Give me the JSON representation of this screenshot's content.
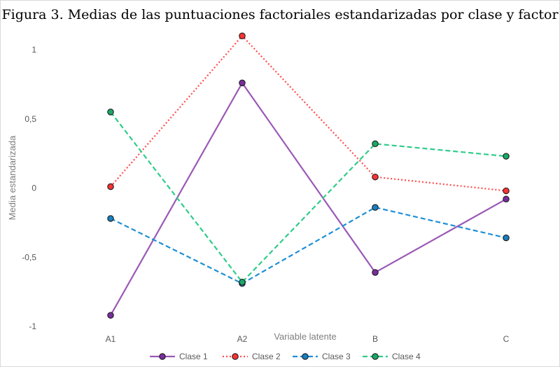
{
  "chart_data": {
    "type": "line",
    "title": "Figura 3. Medias de las puntuaciones factoriales estandarizadas por clase y factor",
    "xlabel": "Variable latente",
    "ylabel": "Media estandarizada",
    "categories": [
      "A1",
      "A2",
      "B",
      "C"
    ],
    "ylim": [
      -1,
      1.1
    ],
    "yticks": [
      {
        "value": 1,
        "label": "1"
      },
      {
        "value": 0.5,
        "label": "0,5"
      },
      {
        "value": 0,
        "label": "0"
      },
      {
        "value": -0.5,
        "label": "-0,5"
      },
      {
        "value": -1,
        "label": "-1"
      }
    ],
    "grid": false,
    "legend_position": "bottom",
    "series": [
      {
        "name": "Clase 1",
        "values": [
          -0.92,
          0.76,
          -0.61,
          -0.08
        ],
        "color": "#9b59b6",
        "marker": "#7b2d9e",
        "dash": "solid"
      },
      {
        "name": "Clase 2",
        "values": [
          0.01,
          1.1,
          0.08,
          -0.02
        ],
        "color": "#ff4d4d",
        "marker": "#ff3333",
        "dash": "dotted"
      },
      {
        "name": "Clase 3",
        "values": [
          -0.22,
          -0.69,
          -0.14,
          -0.36
        ],
        "color": "#1f8fd6",
        "marker": "#1a7fc0",
        "dash": "dashed"
      },
      {
        "name": "Clase 4",
        "values": [
          0.55,
          -0.68,
          0.32,
          0.23
        ],
        "color": "#2ecc8a",
        "marker": "#1aa866",
        "dash": "dashed"
      }
    ]
  }
}
